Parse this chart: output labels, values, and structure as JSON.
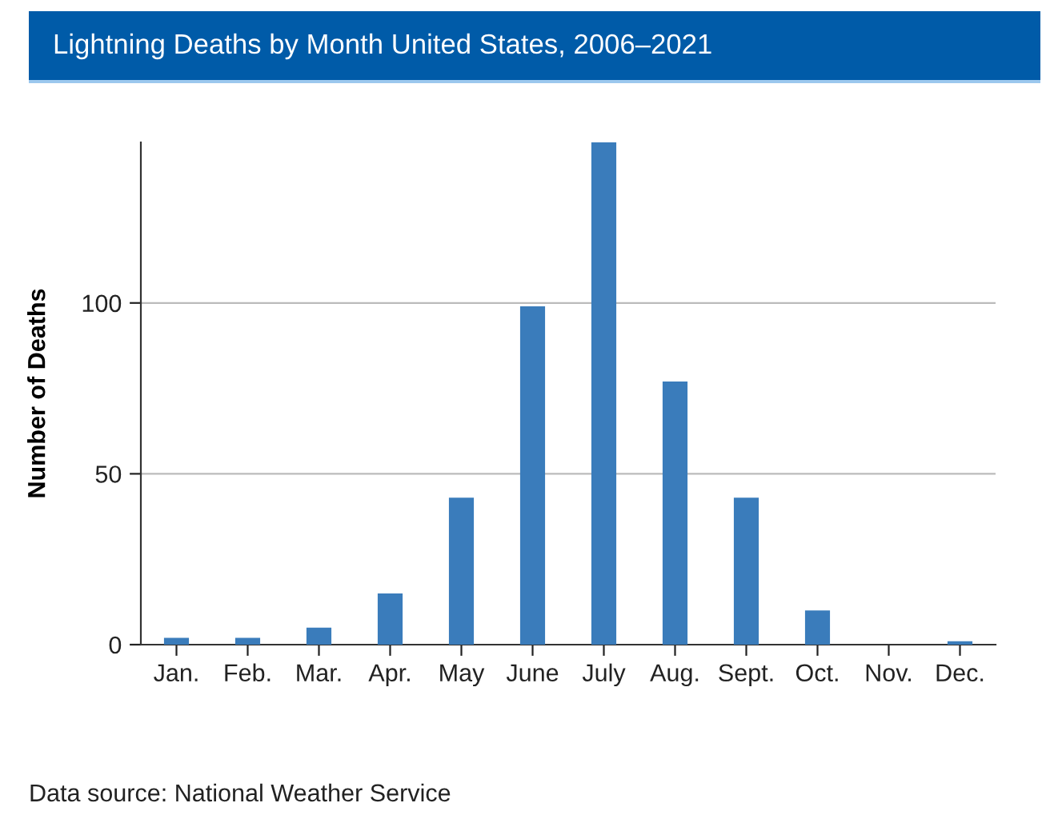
{
  "chart_data": {
    "type": "bar",
    "title": "Lightning Deaths by Month United States, 2006–2021",
    "ylabel": "Number of Deaths",
    "categories": [
      "Jan.",
      "Feb.",
      "Mar.",
      "Apr.",
      "May",
      "June",
      "July",
      "Aug.",
      "Sept.",
      "Oct.",
      "Nov.",
      "Dec."
    ],
    "values": [
      2,
      2,
      5,
      15,
      43,
      99,
      147,
      77,
      43,
      10,
      0,
      1
    ],
    "color": "#3a7cbb",
    "ylim": [
      0,
      147
    ],
    "yticks": [
      0,
      50,
      100
    ],
    "grid": "y",
    "annotations": [
      "Data source: National Weather Service"
    ]
  }
}
